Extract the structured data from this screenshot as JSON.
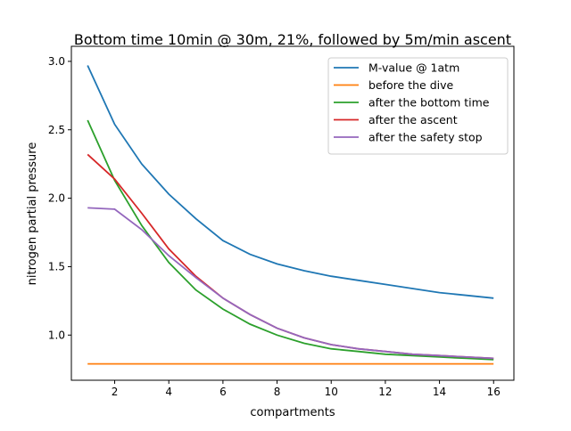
{
  "chart_data": {
    "type": "line",
    "title": "Bottom time 10min @ 30m, 21%, followed by 5m/min ascent",
    "xlabel": "compartments",
    "ylabel": "nitrogen partial pressure",
    "xlim": [
      0.4,
      16.75
    ],
    "ylim": [
      0.67,
      3.11
    ],
    "xticks": [
      2,
      4,
      6,
      8,
      10,
      12,
      14,
      16
    ],
    "yticks": [
      1.0,
      1.5,
      2.0,
      2.5,
      3.0
    ],
    "ytick_labels": [
      "1.0",
      "1.5",
      "2.0",
      "2.5",
      "3.0"
    ],
    "legend_position": "top-right",
    "x": [
      1,
      2,
      3,
      4,
      5,
      6,
      7,
      8,
      9,
      10,
      11,
      12,
      13,
      14,
      15,
      16
    ],
    "series": [
      {
        "name": "M-value @ 1atm",
        "color": "#1f77b4",
        "values": [
          2.97,
          2.54,
          2.25,
          2.03,
          1.85,
          1.69,
          1.59,
          1.52,
          1.47,
          1.43,
          1.4,
          1.37,
          1.34,
          1.31,
          1.29,
          1.27
        ]
      },
      {
        "name": "before the dive",
        "color": "#ff7f0e",
        "values": [
          0.79,
          0.79,
          0.79,
          0.79,
          0.79,
          0.79,
          0.79,
          0.79,
          0.79,
          0.79,
          0.79,
          0.79,
          0.79,
          0.79,
          0.79,
          0.79
        ]
      },
      {
        "name": "after the bottom time",
        "color": "#2ca02c",
        "values": [
          2.57,
          2.13,
          1.8,
          1.53,
          1.33,
          1.19,
          1.08,
          1.0,
          0.94,
          0.9,
          0.88,
          0.86,
          0.85,
          0.84,
          0.83,
          0.82
        ]
      },
      {
        "name": "after the ascent",
        "color": "#d62728",
        "values": [
          2.32,
          2.14,
          1.89,
          1.63,
          1.43,
          1.27,
          1.15,
          1.05,
          0.98,
          0.93,
          0.9,
          0.88,
          0.86,
          0.85,
          0.84,
          0.83
        ]
      },
      {
        "name": "after the safety stop",
        "color": "#9467bd",
        "values": [
          1.93,
          1.92,
          1.77,
          1.58,
          1.42,
          1.27,
          1.15,
          1.05,
          0.98,
          0.93,
          0.9,
          0.88,
          0.86,
          0.85,
          0.84,
          0.83
        ]
      }
    ]
  }
}
